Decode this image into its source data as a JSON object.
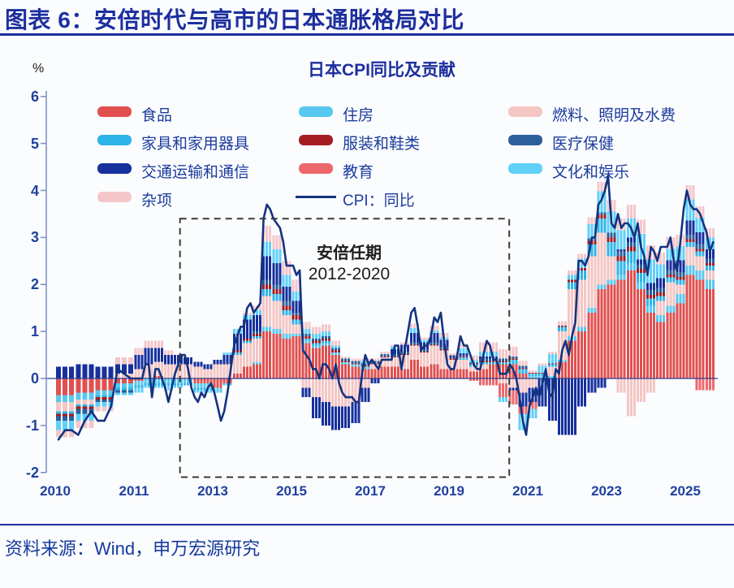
{
  "header": {
    "title": "图表 6：安倍时代与高市的日本通胀格局对比"
  },
  "footer": {
    "source": "资料来源：Wind，申万宏源研究"
  },
  "chart_data": {
    "type": "bar",
    "subtype": "stacked-contribution-bars-with-line",
    "title": "日本CPI同比及贡献",
    "unit_label": "%",
    "ylim": [
      -2,
      6
    ],
    "yticks": [
      6,
      5,
      4,
      3,
      2,
      1,
      0,
      -1,
      -2
    ],
    "xticks": [
      "2010",
      "2011",
      "2013",
      "2015",
      "2017",
      "2019",
      "2021",
      "2023",
      "2025"
    ],
    "grid": false,
    "legend_position": "top",
    "annotation": {
      "line1": "安倍任期",
      "line2": "2012-2020",
      "box_span_years": [
        2012.17,
        2020.53
      ],
      "box_value_span": [
        -2.1,
        3.4
      ]
    },
    "bar_freq": "quarterly",
    "bar_start": "2010Q1",
    "bar_series": [
      {
        "name": "食品",
        "color": "#e1504f",
        "values": [
          -0.35,
          -0.3,
          -0.25,
          -0.1,
          -0.05,
          0,
          0.05,
          0,
          0,
          0,
          -0.1,
          -0.1,
          -0.2,
          -0.1,
          0.1,
          0.25,
          0.3,
          1,
          0.95,
          0.85,
          0.9,
          0.75,
          0.65,
          0.7,
          0.5,
          0.3,
          0.25,
          0.2,
          0.2,
          0.25,
          0.25,
          0.2,
          0.4,
          0.25,
          0.3,
          0.2,
          0.2,
          0.2,
          0.15,
          0.2,
          0.3,
          0.3,
          0.3,
          0.1,
          0,
          0,
          0,
          0.35,
          0.8,
          1,
          1.4,
          1.9,
          2,
          2.1,
          2.3,
          1.9,
          1.4,
          1.2,
          1.4,
          1.6,
          2.2,
          2.1,
          1.9
        ]
      },
      {
        "name": "住房",
        "color": "#59c8f0",
        "values": [
          -0.15,
          -0.15,
          -0.1,
          -0.1,
          -0.1,
          -0.1,
          -0.1,
          -0.1,
          -0.1,
          -0.1,
          -0.1,
          -0.1,
          -0.1,
          -0.05,
          0,
          0,
          0.05,
          0.1,
          0.1,
          0.1,
          0.05,
          0.05,
          0.05,
          0.05,
          0.05,
          0.05,
          0.05,
          0.05,
          0,
          0,
          0,
          0,
          0,
          0,
          0,
          0,
          0,
          0,
          0,
          0,
          0,
          0,
          0,
          0,
          0.05,
          0.05,
          0.05,
          0.05,
          0.1,
          0.1,
          0.1,
          0.1,
          0.1,
          0.1,
          0.15,
          0.15,
          0.15,
          0.15,
          0.15,
          0.2,
          0.2,
          0.2,
          0.2
        ]
      },
      {
        "name": "燃料、照明及水费",
        "color": "#f4c6c4",
        "values": [
          -0.2,
          -0.1,
          0,
          0.1,
          0.2,
          0.3,
          0.3,
          0.3,
          0.3,
          0.3,
          0.25,
          0.2,
          0.3,
          0.3,
          0.4,
          0.5,
          0.5,
          0.65,
          0.6,
          0.4,
          0.2,
          -0.2,
          -0.4,
          -0.5,
          -0.6,
          -0.6,
          -0.5,
          -0.2,
          0.1,
          0.2,
          0.2,
          0.3,
          0.3,
          0.3,
          0.4,
          0.4,
          0.2,
          0.2,
          0.1,
          0.1,
          0,
          -0.1,
          -0.2,
          -0.3,
          -0.2,
          0,
          0.2,
          0.6,
          1,
          1,
          1.1,
          1.1,
          0.5,
          -0.3,
          -0.8,
          -0.5,
          -0.3,
          0.3,
          0.5,
          0.2,
          0.4,
          0.3,
          0.2
        ]
      },
      {
        "name": "家具和家用器具",
        "color": "#2fb4e9",
        "values": [
          -0.05,
          -0.05,
          -0.05,
          -0.05,
          -0.05,
          -0.05,
          -0.05,
          -0.05,
          -0.05,
          -0.05,
          -0.05,
          -0.05,
          0,
          0,
          0.05,
          0.05,
          0.05,
          0.15,
          0.15,
          0.1,
          0.1,
          0.05,
          0.05,
          0.05,
          0,
          0,
          0,
          0,
          0,
          0,
          0,
          0,
          0,
          0,
          0,
          0,
          0,
          0.05,
          0.05,
          0.05,
          0.05,
          0.05,
          0.1,
          0.1,
          0.05,
          0.05,
          0.05,
          0.1,
          0.15,
          0.2,
          0.25,
          0.3,
          0.3,
          0.3,
          0.25,
          0.2,
          0.15,
          0.1,
          0.1,
          0.1,
          0.1,
          0.1,
          0.1
        ]
      },
      {
        "name": "服装和鞋类",
        "color": "#a31d23",
        "values": [
          -0.05,
          -0.05,
          -0.05,
          0,
          0,
          0,
          0,
          0,
          0,
          0,
          0,
          0,
          0,
          0,
          0.05,
          0.05,
          0.05,
          0.1,
          0.1,
          0.1,
          0.1,
          0.05,
          0.05,
          0.05,
          0.05,
          0.02,
          0.02,
          0.02,
          0.02,
          0.02,
          0.02,
          0.02,
          0.02,
          0.02,
          0.02,
          0.02,
          0.02,
          0.02,
          0.02,
          0.02,
          0.02,
          0.02,
          0.02,
          0.02,
          0.02,
          0.02,
          0.02,
          0.02,
          0.05,
          0.05,
          0.08,
          0.08,
          0.1,
          0.1,
          0.1,
          0.08,
          0.08,
          0.08,
          0.06,
          0.06,
          0.06,
          0.06,
          0.05
        ]
      },
      {
        "name": "医疗保健",
        "color": "#2c5f9b",
        "values": [
          -0.1,
          -0.1,
          -0.05,
          -0.05,
          0,
          0,
          0,
          0,
          0,
          0,
          0,
          0,
          0,
          0,
          0,
          0,
          0.05,
          0.1,
          0.1,
          0.1,
          0.05,
          0.05,
          0.05,
          0.05,
          0.05,
          0.05,
          0.05,
          0.05,
          0.05,
          0.05,
          0.05,
          0.05,
          0.05,
          0.05,
          0.05,
          0.05,
          0.02,
          0.02,
          0.02,
          0.05,
          0.05,
          0.05,
          0.05,
          0.05,
          0,
          0,
          0,
          0,
          0,
          0,
          0.05,
          0.05,
          0.1,
          0.1,
          0.1,
          0.1,
          0.1,
          0.1,
          0.1,
          0.1,
          0.1,
          0.1,
          0.1
        ]
      },
      {
        "name": "交通运输和通信",
        "color": "#16309c",
        "values": [
          0.25,
          0.3,
          0.25,
          0.2,
          0.3,
          0.35,
          0.3,
          0.2,
          0.2,
          0.15,
          0.1,
          0.1,
          0.1,
          0.2,
          0.35,
          0.4,
          0.35,
          0.5,
          0.45,
          0.3,
          0.25,
          -0.2,
          -0.45,
          -0.5,
          -0.5,
          -0.45,
          -0.45,
          -0.3,
          -0.1,
          0,
          0.1,
          0.15,
          0.2,
          0.15,
          0.2,
          0.15,
          0.05,
          0.05,
          0,
          0.05,
          0.05,
          0,
          -0.05,
          -0.3,
          -0.3,
          -0.6,
          -0.9,
          -1.2,
          -1.2,
          -0.6,
          -0.3,
          -0.2,
          0,
          0.05,
          0.1,
          0.1,
          0.15,
          0.2,
          0.2,
          0.25,
          0.3,
          0.25,
          0.2
        ]
      },
      {
        "name": "教育",
        "color": "#ed686c",
        "values": [
          0,
          0,
          0,
          0,
          0,
          0,
          0,
          0,
          0,
          0,
          0,
          0,
          0,
          0,
          0,
          0,
          0,
          0,
          0,
          0,
          0,
          0,
          0,
          0,
          0,
          0,
          0,
          0,
          0,
          0,
          0,
          0,
          0,
          0,
          0,
          0,
          0,
          0,
          -0.05,
          -0.15,
          -0.15,
          -0.3,
          -0.3,
          -0.15,
          -0.15,
          0,
          0,
          0,
          0,
          0,
          0,
          0,
          0,
          0,
          0,
          0,
          0,
          0,
          0,
          0,
          0,
          -0.25,
          -0.25
        ]
      },
      {
        "name": "文化和娱乐",
        "color": "#5fd0f8",
        "values": [
          -0.2,
          -0.15,
          -0.1,
          -0.05,
          -0.1,
          -0.05,
          -0.05,
          -0.1,
          -0.05,
          0,
          -0.05,
          -0.05,
          0,
          0.05,
          0.1,
          0.1,
          0.1,
          0.3,
          0.3,
          0.25,
          0.2,
          0.1,
          0.1,
          0.1,
          0.05,
          0,
          0,
          0.05,
          0,
          0,
          0.05,
          0,
          0.1,
          0.05,
          0.05,
          0.05,
          0,
          0.1,
          0.05,
          0.1,
          0.1,
          -0.1,
          0,
          -0.35,
          -0.2,
          0.15,
          0.2,
          0,
          0.1,
          0.2,
          0.3,
          0.45,
          0.45,
          0.4,
          0.4,
          0.55,
          0.5,
          0.3,
          0.25,
          0.3,
          0.45,
          0.3,
          0.25
        ]
      },
      {
        "name": "杂项",
        "color": "#f4c6ca",
        "values": [
          -0.15,
          -0.15,
          -0.1,
          0.15,
          0.15,
          0.15,
          0.15,
          0.1,
          0,
          0,
          0,
          0,
          0,
          0,
          0,
          0.05,
          0.1,
          0.35,
          0.3,
          0.3,
          0.25,
          0.15,
          0.15,
          0.15,
          0.1,
          0.05,
          0.05,
          0.05,
          0.05,
          0.05,
          0.05,
          0.05,
          0.1,
          0.05,
          0.1,
          0.1,
          0.05,
          0.1,
          0.1,
          0.2,
          0.2,
          0.2,
          0.2,
          0.1,
          0.05,
          0.05,
          0.05,
          0.1,
          0.1,
          0.1,
          0.15,
          0.2,
          0.25,
          0.25,
          0.3,
          0.3,
          0.3,
          0.25,
          0.25,
          0.25,
          0.3,
          0.25,
          0.2
        ]
      }
    ],
    "line_series": {
      "name": "CPI：同比",
      "color": "#14337f",
      "freq": "monthly",
      "start": "2010-01",
      "values": [
        -1.3,
        -1.1,
        -1.1,
        -1.2,
        -0.9,
        -0.7,
        -0.9,
        -0.9,
        -0.6,
        0.2,
        0.1,
        0,
        0,
        0,
        0,
        0.3,
        0.3,
        -0.4,
        0.2,
        0.2,
        0,
        -0.2,
        -0.5,
        -0.2,
        0.1,
        0.3,
        0.5,
        0.5,
        0.2,
        -0.2,
        -0.4,
        -0.5,
        -0.3,
        -0.4,
        -0.2,
        -0.1,
        -0.3,
        -0.6,
        -0.9,
        -0.7,
        -0.3,
        0.2,
        0.7,
        0.9,
        1.1,
        1.1,
        1.5,
        1.6,
        1.4,
        1.5,
        1.6,
        3.4,
        3.7,
        3.6,
        3.4,
        3.3,
        3.2,
        2.9,
        2.4,
        2.4,
        2.4,
        2.2,
        2.3,
        0.6,
        0.5,
        0.4,
        0.2,
        0.2,
        0,
        0.3,
        0.3,
        0.2,
        0,
        0.3,
        -0.1,
        -0.3,
        -0.4,
        -0.4,
        -0.4,
        -0.5,
        -0.5,
        0.1,
        0.5,
        0.3,
        0.4,
        0.3,
        0.2,
        0.4,
        0.4,
        0.4,
        0.4,
        0.7,
        0.7,
        0.2,
        0.6,
        1,
        1.4,
        1.5,
        1.1,
        0.6,
        0.7,
        0.7,
        0.9,
        1.3,
        1.2,
        1.4,
        0.8,
        0.3,
        0.2,
        0.2,
        0.5,
        0.9,
        0.7,
        0.7,
        0.5,
        0.3,
        0.2,
        0.2,
        0.5,
        0.8,
        0.7,
        0.4,
        0.4,
        0.1,
        0.1,
        0.1,
        0.3,
        0.2,
        0,
        -0.4,
        -0.9,
        -1.2,
        -0.6,
        -0.4,
        -0.2,
        -0.4,
        -0.1,
        0.2,
        -0.3,
        -0.4,
        0.2,
        0.1,
        0.6,
        0.8,
        0.5,
        0.9,
        1.2,
        2.5,
        2.5,
        2.4,
        2.6,
        3,
        3,
        3.7,
        3.8,
        4,
        4.3,
        3.3,
        3.2,
        3.5,
        3.2,
        3.3,
        3.3,
        3.2,
        3,
        3.3,
        2.8,
        2.6,
        2.2,
        2.8,
        2.7,
        2.5,
        2.8,
        2.8,
        2.8,
        3,
        2.5,
        2.3,
        2.9,
        3.6,
        4,
        3.7,
        3.6,
        3.6,
        3.5,
        3.3,
        3.1,
        2.7,
        2.9
      ]
    }
  }
}
